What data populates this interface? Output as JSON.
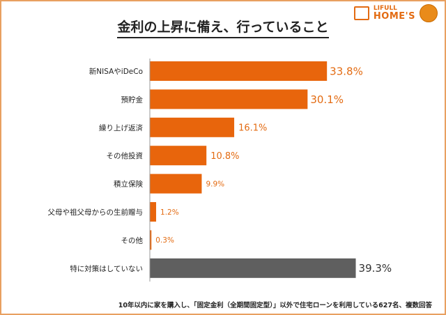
{
  "logo": {
    "line1": "LIFULL",
    "line2": "HOME'S"
  },
  "footnote": "10年以内に家を購入し、「固定金利（全期間固定型）」以外で住宅ローンを利用している627名、複数回答",
  "chart_data": {
    "type": "bar",
    "orientation": "horizontal",
    "title": "金利の上昇に備え、行っていること",
    "categories": [
      "新NISAやiDeCo",
      "預貯金",
      "繰り上げ返済",
      "その他投資",
      "積立保険",
      "父母や祖父母からの生前贈与",
      "その他",
      "特に対策はしていない"
    ],
    "values": [
      33.8,
      30.1,
      16.1,
      10.8,
      9.9,
      1.2,
      0.3,
      39.3
    ],
    "value_labels": [
      "33.8%",
      "30.1%",
      "16.1%",
      "10.8%",
      "9.9%",
      "1.2%",
      "0.3%",
      "39.3%"
    ],
    "colors": [
      "#e8650c",
      "#e8650c",
      "#e8650c",
      "#e8650c",
      "#e8650c",
      "#e8650c",
      "#e8650c",
      "#5f5f5f"
    ],
    "label_colors": [
      "#e36b12",
      "#e36b12",
      "#e36b12",
      "#e36b12",
      "#e36b12",
      "#e36b12",
      "#e36b12",
      "#333333"
    ],
    "xlim": [
      0,
      40
    ],
    "grid": false
  }
}
